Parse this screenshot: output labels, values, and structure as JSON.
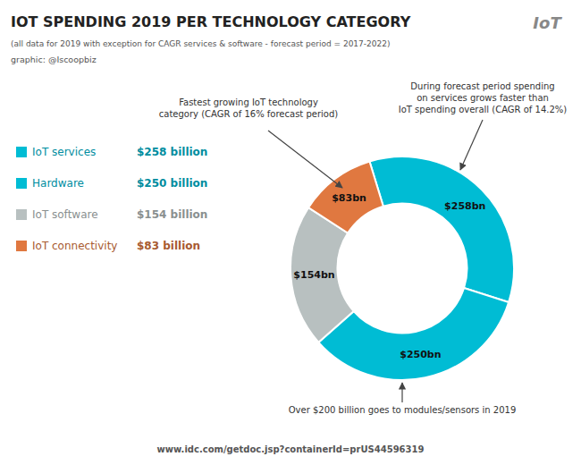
{
  "chart_data": {
    "type": "pie",
    "title": "IOT SPENDING 2019 PER TECHNOLOGY CATEGORY",
    "subtitle": "(all data for 2019 with exception for CAGR services & software - forecast period = 2017-2022)",
    "categories": [
      "IoT services",
      "Hardware",
      "IoT software",
      "IoT connectivity"
    ],
    "values": [
      258,
      250,
      154,
      83
    ],
    "value_labels": [
      "$258bn",
      "$250bn",
      "$154bn",
      "$83bn"
    ],
    "data_labels": true,
    "colors": [
      "#00bcd4",
      "#00bcd4",
      "#b8c0c0",
      "#e07840"
    ],
    "legend": "left",
    "legend_value_labels": [
      "$258 billion",
      "$250 billion",
      "$154 billion",
      "$83 billion"
    ],
    "annotations": [
      "Fastest growing IoT technology\ncategory (CAGR of 16% forecast period)",
      "During forecast period spending\non services grows faster than\nIoT spending overall (CAGR of 14.2%)",
      "Over $200 billion goes to modules/sensors in 2019"
    ],
    "credit": "graphic: @Iscoopbiz",
    "source": "www.idc.com/getdoc.jsp?containerId=prUS44596319",
    "logo_text": "IoT"
  }
}
